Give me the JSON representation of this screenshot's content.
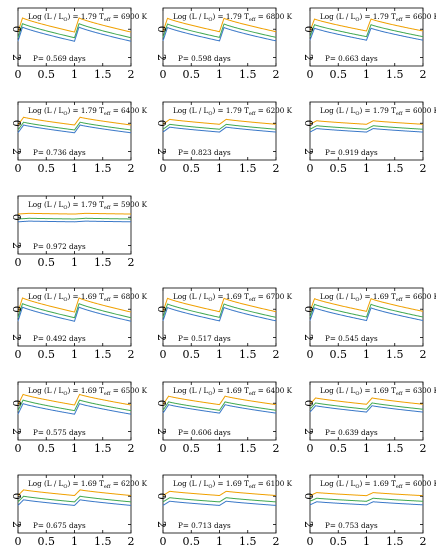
{
  "colors": {
    "orange": "#f0a000",
    "green": "#40a850",
    "blue": "#3a78c8",
    "axis": "#000000"
  },
  "chart_data": [
    {
      "type": "line",
      "title_prefix": "Log (L / L",
      "title_sun": "O",
      "title_mid": ") = 1.79 T",
      "title_sub": "eff",
      "title_suffix": " = 6900 K",
      "period": "P= 0.569 days",
      "xlim": [
        0,
        2
      ],
      "ylim": [
        -1.5,
        2.6
      ],
      "xticks": [
        "0",
        "0.5",
        "1",
        "1.5",
        "2"
      ],
      "yticks": [
        "0",
        "2"
      ],
      "amp": 1.0,
      "rise": 0.08,
      "series": [
        {
          "name": "",
          "color": "orange",
          "offset": -0.3
        },
        {
          "name": "",
          "color": "green",
          "offset": 0.1
        },
        {
          "name": "",
          "color": "blue",
          "offset": 0.35
        }
      ]
    },
    {
      "type": "line",
      "title_prefix": "Log (L / L",
      "title_sun": "O",
      "title_mid": ") = 1.79 T",
      "title_sub": "eff",
      "title_suffix": " = 6800 K",
      "period": "P= 0.598 days",
      "xlim": [
        0,
        2
      ],
      "ylim": [
        -1.5,
        2.6
      ],
      "xticks": [
        "0",
        "0.5",
        "1",
        "1.5",
        "2"
      ],
      "yticks": [
        "0",
        "2"
      ],
      "amp": 0.95,
      "rise": 0.08,
      "series": [
        {
          "name": "",
          "color": "orange",
          "offset": -0.3
        },
        {
          "name": "",
          "color": "green",
          "offset": 0.1
        },
        {
          "name": "",
          "color": "blue",
          "offset": 0.35
        }
      ]
    },
    {
      "type": "line",
      "title_prefix": "Log (L / L",
      "title_sun": "O",
      "title_mid": ") = 1.79 T",
      "title_sub": "eff",
      "title_suffix": " = 6600 K",
      "period": "P= 0.663 days",
      "xlim": [
        0,
        2
      ],
      "ylim": [
        -1.5,
        2.6
      ],
      "xticks": [
        "0",
        "0.5",
        "1",
        "1.5",
        "2"
      ],
      "yticks": [
        "0",
        "2"
      ],
      "amp": 0.85,
      "rise": 0.08,
      "series": [
        {
          "name": "",
          "color": "orange",
          "offset": -0.3
        },
        {
          "name": "",
          "color": "green",
          "offset": 0.1
        },
        {
          "name": "",
          "color": "blue",
          "offset": 0.35
        }
      ]
    },
    {
      "type": "line",
      "title_prefix": "Log (L / L",
      "title_sun": "O",
      "title_mid": ") = 1.79 T",
      "title_sub": "eff",
      "title_suffix": " = 6400 K",
      "period": "P= 0.736 days",
      "xlim": [
        0,
        2
      ],
      "ylim": [
        -1.5,
        2.6
      ],
      "xticks": [
        "0",
        "0.5",
        "1",
        "1.5",
        "2"
      ],
      "yticks": [
        "0",
        "2"
      ],
      "amp": 0.55,
      "rise": 0.1,
      "series": [
        {
          "name": "",
          "color": "orange",
          "offset": -0.15
        },
        {
          "name": "",
          "color": "green",
          "offset": 0.2
        },
        {
          "name": "",
          "color": "blue",
          "offset": 0.4
        }
      ]
    },
    {
      "type": "line",
      "title_prefix": "Log (L / L",
      "title_sun": "O",
      "title_mid": ") = 1.79 T",
      "title_sub": "eff",
      "title_suffix": " = 6200 K",
      "period": "P= 0.823 days",
      "xlim": [
        0,
        2
      ],
      "ylim": [
        -1.5,
        2.6
      ],
      "xticks": [
        "0",
        "0.5",
        "1",
        "1.5",
        "2"
      ],
      "yticks": [
        "0",
        "2"
      ],
      "amp": 0.35,
      "rise": 0.12,
      "series": [
        {
          "name": "",
          "color": "orange",
          "offset": -0.1
        },
        {
          "name": "",
          "color": "green",
          "offset": 0.25
        },
        {
          "name": "",
          "color": "blue",
          "offset": 0.45
        }
      ]
    },
    {
      "type": "line",
      "title_prefix": "Log (L / L",
      "title_sun": "O",
      "title_mid": ") = 1.79 T",
      "title_sub": "eff",
      "title_suffix": " = 6000 K",
      "period": "P= 0.919 days",
      "xlim": [
        0,
        2
      ],
      "ylim": [
        -1.5,
        2.6
      ],
      "xticks": [
        "0",
        "0.5",
        "1",
        "1.5",
        "2"
      ],
      "yticks": [
        "0",
        "2"
      ],
      "amp": 0.25,
      "rise": 0.12,
      "series": [
        {
          "name": "",
          "color": "orange",
          "offset": -0.05
        },
        {
          "name": "",
          "color": "green",
          "offset": 0.3
        },
        {
          "name": "",
          "color": "blue",
          "offset": 0.5
        }
      ]
    },
    {
      "type": "line",
      "title_prefix": "Log (L / L",
      "title_sun": "O",
      "title_mid": ") = 1.79 T",
      "title_sub": "eff",
      "title_suffix": " = 5900 K",
      "period": "P= 0.972 days",
      "xlim": [
        0,
        2
      ],
      "ylim": [
        -1.5,
        2.6
      ],
      "xticks": [
        "0",
        "0.5",
        "1",
        "1.5",
        "2"
      ],
      "yticks": [
        "0",
        "2"
      ],
      "amp": 0.05,
      "rise": 0.2,
      "series": [
        {
          "name": "",
          "color": "orange",
          "offset": -0.25
        },
        {
          "name": "",
          "color": "green",
          "offset": 0.1
        },
        {
          "name": "",
          "color": "blue",
          "offset": 0.3
        }
      ]
    },
    {
      "type": "line",
      "title_prefix": "Log (L / L",
      "title_sun": "O",
      "title_mid": ") = 1.69 T",
      "title_sub": "eff",
      "title_suffix": " = 6800 K",
      "period": "P= 0.492 days",
      "xlim": [
        0,
        2
      ],
      "ylim": [
        -1.5,
        2.6
      ],
      "xticks": [
        "0",
        "0.5",
        "1",
        "1.5",
        "2"
      ],
      "yticks": [
        "0",
        "2"
      ],
      "amp": 1.0,
      "rise": 0.08,
      "series": [
        {
          "name": "",
          "color": "orange",
          "offset": -0.3
        },
        {
          "name": "",
          "color": "green",
          "offset": 0.1
        },
        {
          "name": "",
          "color": "blue",
          "offset": 0.35
        }
      ]
    },
    {
      "type": "line",
      "title_prefix": "Log (L / L",
      "title_sun": "O",
      "title_mid": ") = 1.69 T",
      "title_sub": "eff",
      "title_suffix": " = 6700 K",
      "period": "P= 0.517 days",
      "xlim": [
        0,
        2
      ],
      "ylim": [
        -1.5,
        2.6
      ],
      "xticks": [
        "0",
        "0.5",
        "1",
        "1.5",
        "2"
      ],
      "yticks": [
        "0",
        "2"
      ],
      "amp": 0.95,
      "rise": 0.08,
      "series": [
        {
          "name": "",
          "color": "orange",
          "offset": -0.3
        },
        {
          "name": "",
          "color": "green",
          "offset": 0.1
        },
        {
          "name": "",
          "color": "blue",
          "offset": 0.35
        }
      ]
    },
    {
      "type": "line",
      "title_prefix": "Log (L / L",
      "title_sun": "O",
      "title_mid": ") = 1.69 T",
      "title_sub": "eff",
      "title_suffix": " = 6600 K",
      "period": "P= 0.545 days",
      "xlim": [
        0,
        2
      ],
      "ylim": [
        -1.5,
        2.6
      ],
      "xticks": [
        "0",
        "0.5",
        "1",
        "1.5",
        "2"
      ],
      "yticks": [
        "0",
        "2"
      ],
      "amp": 0.9,
      "rise": 0.08,
      "series": [
        {
          "name": "",
          "color": "orange",
          "offset": -0.3
        },
        {
          "name": "",
          "color": "green",
          "offset": 0.1
        },
        {
          "name": "",
          "color": "blue",
          "offset": 0.35
        }
      ]
    },
    {
      "type": "line",
      "title_prefix": "Log (L / L",
      "title_sun": "O",
      "title_mid": ") = 1.69 T",
      "title_sub": "eff",
      "title_suffix": " = 6500 K",
      "period": "P= 0.575 days",
      "xlim": [
        0,
        2
      ],
      "ylim": [
        -1.5,
        2.6
      ],
      "xticks": [
        "0",
        "0.5",
        "1",
        "1.5",
        "2"
      ],
      "yticks": [
        "0",
        "2"
      ],
      "amp": 0.75,
      "rise": 0.09,
      "series": [
        {
          "name": "",
          "color": "orange",
          "offset": -0.25
        },
        {
          "name": "",
          "color": "green",
          "offset": 0.15
        },
        {
          "name": "",
          "color": "blue",
          "offset": 0.4
        }
      ]
    },
    {
      "type": "line",
      "title_prefix": "Log (L / L",
      "title_sun": "O",
      "title_mid": ") = 1.69 T",
      "title_sub": "eff",
      "title_suffix": " = 6400 K",
      "period": "P= 0.606 days",
      "xlim": [
        0,
        2
      ],
      "ylim": [
        -1.5,
        2.6
      ],
      "xticks": [
        "0",
        "0.5",
        "1",
        "1.5",
        "2"
      ],
      "yticks": [
        "0",
        "2"
      ],
      "amp": 0.6,
      "rise": 0.1,
      "series": [
        {
          "name": "",
          "color": "orange",
          "offset": -0.2
        },
        {
          "name": "",
          "color": "green",
          "offset": 0.2
        },
        {
          "name": "",
          "color": "blue",
          "offset": 0.4
        }
      ]
    },
    {
      "type": "line",
      "title_prefix": "Log (L / L",
      "title_sun": "O",
      "title_mid": ") = 1.69 T",
      "title_sub": "eff",
      "title_suffix": " = 6300 K",
      "period": "P= 0.639 days",
      "xlim": [
        0,
        2
      ],
      "ylim": [
        -1.5,
        2.6
      ],
      "xticks": [
        "0",
        "0.5",
        "1",
        "1.5",
        "2"
      ],
      "yticks": [
        "0",
        "2"
      ],
      "amp": 0.45,
      "rise": 0.1,
      "series": [
        {
          "name": "",
          "color": "orange",
          "offset": -0.15
        },
        {
          "name": "",
          "color": "green",
          "offset": 0.2
        },
        {
          "name": "",
          "color": "blue",
          "offset": 0.4
        }
      ]
    },
    {
      "type": "line",
      "title_prefix": "Log (L / L",
      "title_sun": "O",
      "title_mid": ") = 1.69 T",
      "title_sub": "eff",
      "title_suffix": " = 6200 K",
      "period": "P= 0.675 days",
      "xlim": [
        0,
        2
      ],
      "ylim": [
        -1.5,
        2.6
      ],
      "xticks": [
        "0",
        "0.5",
        "1",
        "1.5",
        "2"
      ],
      "yticks": [
        "0",
        "2"
      ],
      "amp": 0.4,
      "rise": 0.1,
      "series": [
        {
          "name": "",
          "color": "orange",
          "offset": -0.25
        },
        {
          "name": "",
          "color": "green",
          "offset": 0.2
        },
        {
          "name": "",
          "color": "blue",
          "offset": 0.45
        }
      ]
    },
    {
      "type": "line",
      "title_prefix": "Log (L / L",
      "title_sun": "O",
      "title_mid": ") = 1.69 T",
      "title_sub": "eff",
      "title_suffix": " = 6100 K",
      "period": "P= 0.713 days",
      "xlim": [
        0,
        2
      ],
      "ylim": [
        -1.5,
        2.6
      ],
      "xticks": [
        "0",
        "0.5",
        "1",
        "1.5",
        "2"
      ],
      "yticks": [
        "0",
        "2"
      ],
      "amp": 0.3,
      "rise": 0.12,
      "series": [
        {
          "name": "",
          "color": "orange",
          "offset": -0.2
        },
        {
          "name": "",
          "color": "green",
          "offset": 0.25
        },
        {
          "name": "",
          "color": "blue",
          "offset": 0.5
        }
      ]
    },
    {
      "type": "line",
      "title_prefix": "Log (L / L",
      "title_sun": "O",
      "title_mid": ") = 1.69 T",
      "title_sub": "eff",
      "title_suffix": " = 6000 K",
      "period": "P= 0.753 days",
      "xlim": [
        0,
        2
      ],
      "ylim": [
        -1.5,
        2.6
      ],
      "xticks": [
        "0",
        "0.5",
        "1",
        "1.5",
        "2"
      ],
      "yticks": [
        "0",
        "2"
      ],
      "amp": 0.22,
      "rise": 0.12,
      "series": [
        {
          "name": "",
          "color": "orange",
          "offset": -0.15
        },
        {
          "name": "",
          "color": "green",
          "offset": 0.25
        },
        {
          "name": "",
          "color": "blue",
          "offset": 0.5
        }
      ]
    }
  ]
}
